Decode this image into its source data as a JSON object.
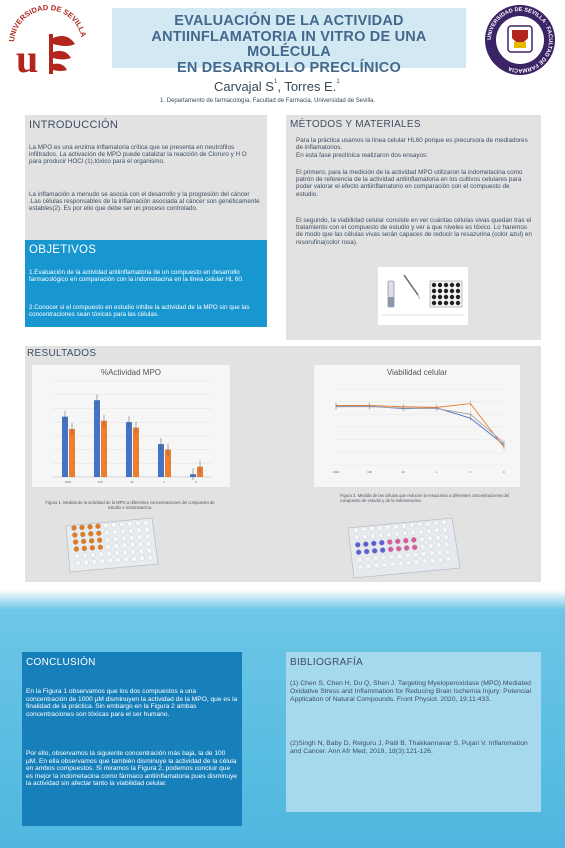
{
  "header": {
    "title_lines": [
      "EVALUACIÓN DE LA ACTIVIDAD",
      "ANTIINFLAMATORIA IN VITRO DE UNA MOLÉCULA",
      "EN DESARROLLO PRECLÍNICO"
    ],
    "author1": "Carvajal S",
    "author1_sup": "1",
    "author_sep": ",",
    "author2": "Torres  E.",
    "author2_sup": "1",
    "affiliation": "1. Departamento de farmacología, Facultad de Farmacia, Universidad de Sevilla.",
    "logo_left_text": "UNIVERSIDAD DE SEVILLA",
    "logo_right_text": "UNIVERSIDAD DE SEVILLA · FACULTAD DE FARMACIA"
  },
  "intro": {
    "heading": "INTRODUCCIÓN",
    "p1": "La MPO es una enzima inflamatoria crítica que se presenta en neutrófilos infiltrados. La activación de MPO puede catalizar la reacción de Cloruro y H O para producir HOCl (1),tóxico para el organismo.",
    "p2": "La inflamación a menudo se asocia con el desarrollo y la progresión del cáncer .Las células responsables de la inflamación asociada al cáncer son genéticamente estables(2).  Es por ello que debe ser un proceso controlado."
  },
  "objectives": {
    "heading": "OBJETIVOS",
    "p1": "1.Evaluación de la actividad antiinflamatoria de un compuesto en desarrollo farmacológico en comparación con la indometacina en la línea celular HL 60.",
    "p2": "2.Conocer si el compuesto en estudio inhibe la actividad de la MPO sin que las concentraciones sean tóxicas para las células."
  },
  "methods": {
    "heading": "MÉTODOS Y MATERIALES",
    "p1": "Para la práctica usamos la línea celular HL60 porque es precursora de mediadores de inflamatorios.",
    "p1b": "En esta fase preclínica realizaron dos ensayos:",
    "p2": "El primero, para la medición de la actividad MPO utilizaron la indometacina como patrón de referencia de la actividad antiinflamatoria en los cultivos celulares para poder valorar el efecto antiinflamatorio en comparación con el compuesto de estudio.",
    "p3": "El segundo, la viabilidad celular consiste en ver cuántas células vivas quedan tras el tratamiento con el compuesto de estudio y ver a que niveles es tóxico. Lo haremos de modo que las células vivas serán capaces de reducir la resazurina (color azul) en resorufina(color rosa)."
  },
  "results": {
    "heading": "RESULTADOS",
    "caption1": "Figura 1. Medida de la actividad de la MPO a diferentes concentraciones del compuesto de estudio e indometacina.",
    "caption2": "Figura 2. Medida de las células que reducen la resazurina a diferentes concentraciones del compuesto de estudio y de la indometacina."
  },
  "chart_data": [
    {
      "type": "bar",
      "title": "%Actividad MPO",
      "categories": [
        "1000",
        "100",
        "10",
        "1",
        "0"
      ],
      "series": [
        {
          "values": [
            88,
            112,
            80,
            48,
            4
          ],
          "color": "#4472c4"
        },
        {
          "values": [
            70,
            82,
            72,
            40,
            15
          ],
          "color": "#ed7d31"
        }
      ],
      "ylim": [
        0,
        140
      ]
    },
    {
      "type": "line",
      "title": "Viabilidad celular",
      "categories": [
        "1000",
        "100",
        "10",
        "1",
        "0",
        "C"
      ],
      "series": [
        {
          "values": [
            93,
            93,
            89,
            90,
            74,
            32
          ],
          "color": "#4472c4"
        },
        {
          "values": [
            94,
            94,
            92,
            91,
            97,
            28
          ],
          "color": "#ed7d31"
        },
        {
          "values": [
            92,
            92,
            90,
            89,
            80,
            35
          ],
          "color": "#a5a5a5"
        }
      ],
      "ylim": [
        0,
        120
      ]
    }
  ],
  "conclusion": {
    "heading": "CONCLUSIÓN",
    "p1": "En la Figura 1 observamos que los dos compuestos a una concentración de 1000 µM disminuyen la actividad de la MPO, que es la finalidad de la práctica. Sin embargo en la Figura 2 ambas concentraciones son tóxicas para el ser humano.",
    "p2": "Por ello, observamos la siguiente concentración más baja, la de 100 µM. En ella observamos que también disminuye la actividad de la célula en ambos compuestos. Si miramos la Figura 2, podemos concluir que es mejor la indometacina como fármaco antiinflamatoria pues disminuye la actividad sin afectar tanto la viabilidad celular."
  },
  "bibliography": {
    "heading": "BIBLIOGRAFÍA",
    "ref1": "(1) Chen S, Chen H, Du Q, Shen J. Targeting Myeloperoxidase (MPO) Mediated Oxidative Stress and Inflammation for Reducing Brain Ischemia Injury: Potencial Application of Natural Compounds. Front Physiol. 2020, 19;11:433.",
    "ref2": "(2)Singh N, Baby D, Relguru J, Patil B, Thakkannavar S, Pujari V. Inflammation and Cancer. Ann Afr Med, 2019, 18(3):121-126."
  },
  "colors": {
    "accent_blue": "#1896cf",
    "dark_blue": "#1780bb",
    "title_blue": "#44688c",
    "red_logo": "#b3261e",
    "purple_logo": "#3b2466"
  }
}
